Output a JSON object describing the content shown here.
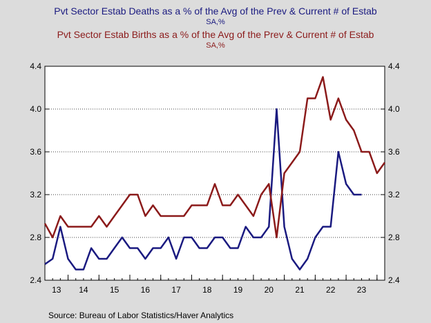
{
  "chart_data": {
    "type": "line",
    "series": [
      {
        "name": "Pvt Sector Estab Deaths as a % of the Avg of the Prev & Current # of Estab",
        "units": "SA,%",
        "color": "#1a1a80",
        "values": [
          2.55,
          2.6,
          2.9,
          2.6,
          2.5,
          2.5,
          2.7,
          2.6,
          2.6,
          2.7,
          2.8,
          2.7,
          2.7,
          2.6,
          2.7,
          2.7,
          2.8,
          2.6,
          2.8,
          2.8,
          2.7,
          2.7,
          2.8,
          2.8,
          2.7,
          2.7,
          2.9,
          2.8,
          2.8,
          2.9,
          4.0,
          2.9,
          2.6,
          2.5,
          2.6,
          2.8,
          2.9,
          2.9,
          3.6,
          3.3,
          3.2,
          3.2
        ]
      },
      {
        "name": "Pvt Sector Estab Births as a % of the Avg of the Prev & Current # of Estab",
        "units": "SA,%",
        "color": "#8b1a1a",
        "values": [
          2.93,
          2.8,
          3.0,
          2.9,
          2.9,
          2.9,
          2.9,
          3.0,
          2.9,
          3.0,
          3.1,
          3.2,
          3.2,
          3.0,
          3.1,
          3.0,
          3.0,
          3.0,
          3.0,
          3.1,
          3.1,
          3.1,
          3.3,
          3.1,
          3.1,
          3.2,
          3.1,
          3.0,
          3.2,
          3.3,
          2.8,
          3.4,
          3.5,
          3.6,
          4.1,
          4.1,
          4.3,
          3.9,
          4.1,
          3.9,
          3.8,
          3.6,
          3.6,
          3.4,
          3.5
        ]
      }
    ],
    "x_tick_labels": [
      "13",
      "14",
      "15",
      "16",
      "17",
      "18",
      "19",
      "20",
      "21",
      "22",
      "23"
    ],
    "y_ticks": [
      "2.4",
      "2.8",
      "3.2",
      "3.6",
      "4.0",
      "4.4"
    ],
    "ylim": [
      2.4,
      4.4
    ],
    "grid": "horizontal dotted",
    "source": "Source:  Bureau of Labor Statistics/Haver Analytics"
  }
}
